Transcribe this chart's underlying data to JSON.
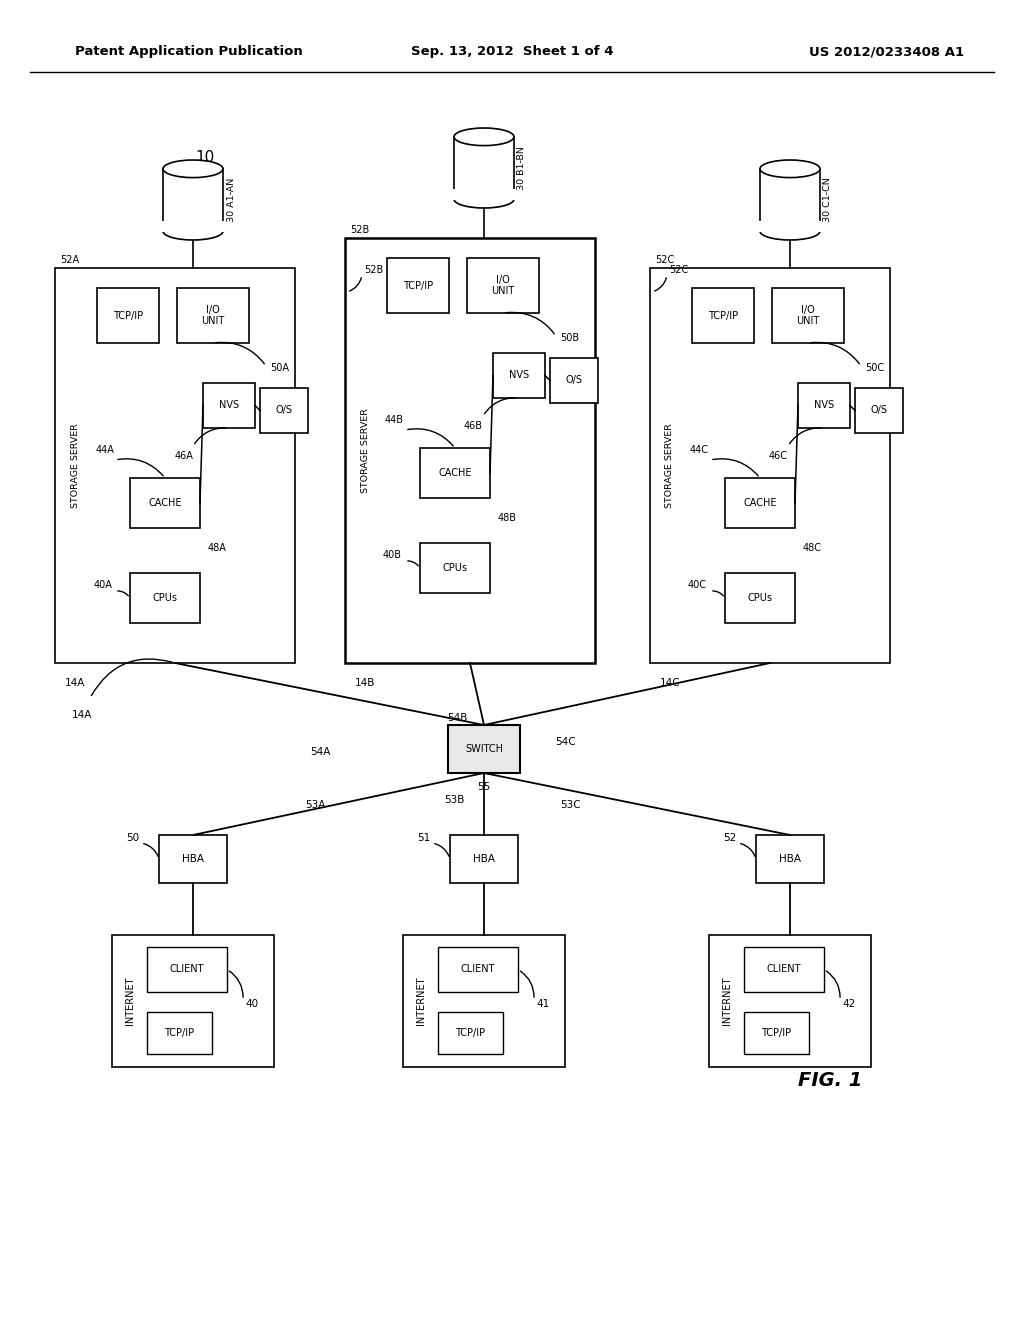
{
  "header_left": "Patent Application Publication",
  "header_center": "Sep. 13, 2012  Sheet 1 of 4",
  "header_right": "US 2012/0233408 A1",
  "fig_label": "FIG. 1",
  "bg_color": "#ffffff",
  "ref10": "10",
  "servers": [
    {
      "id": "14A",
      "disk_name": "30 A1-AN",
      "disk_ref": "52A",
      "io_ref": "50A",
      "nvs_ref": "46A",
      "cache_ref": "44A",
      "cpu_ref": "40A",
      "os_ref": "48A",
      "bold": false
    },
    {
      "id": "14B",
      "disk_name": "30 B1-BN",
      "disk_ref": "52B",
      "io_ref": "50B",
      "nvs_ref": "46B",
      "cache_ref": "44B",
      "cpu_ref": "40B",
      "os_ref": "48B",
      "bold": true
    },
    {
      "id": "14C",
      "disk_name": "30 C1-CN",
      "disk_ref": "52C",
      "io_ref": "50C",
      "nvs_ref": "46C",
      "cache_ref": "44C",
      "cpu_ref": "40C",
      "os_ref": "48C",
      "bold": false
    }
  ],
  "disk_extra_refs": [
    "52B",
    "52C"
  ],
  "switch_ref": "55",
  "srv_conn_refs": [
    "54A",
    "54B",
    "54C"
  ],
  "hba_conn_refs": [
    "53A",
    "53B",
    "53C"
  ],
  "net_label": "14A",
  "clients": [
    {
      "hba_ref": "50",
      "client_ref": "40"
    },
    {
      "hba_ref": "51",
      "client_ref": "41"
    },
    {
      "hba_ref": "52",
      "client_ref": "42"
    }
  ]
}
